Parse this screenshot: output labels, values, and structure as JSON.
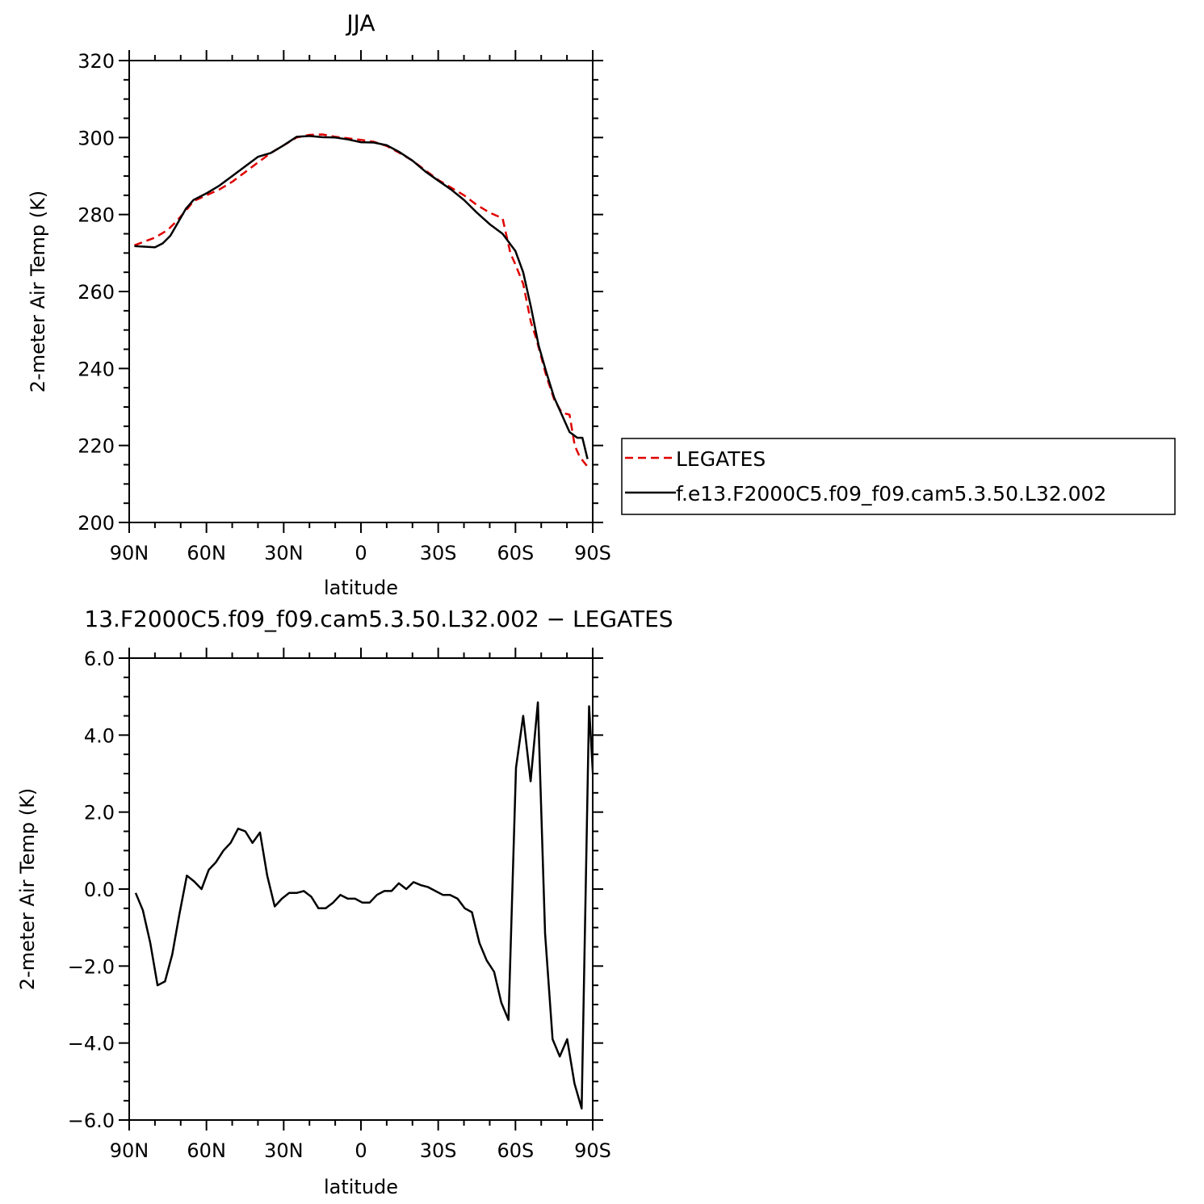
{
  "chart_data": [
    {
      "type": "line",
      "title": "JJA",
      "xlabel": "latitude",
      "ylabel": "2-meter Air Temp (K)",
      "xlim": [
        90,
        -90
      ],
      "ylim": [
        200,
        320
      ],
      "yticks": [
        200,
        220,
        240,
        260,
        280,
        300,
        320
      ],
      "yticklabels": [
        "200",
        "220",
        "240",
        "260",
        "280",
        "300",
        "320"
      ],
      "xticks": [
        90,
        60,
        30,
        0,
        -30,
        -60,
        -90
      ],
      "xticklabels": [
        "90N",
        "60N",
        "30N",
        "0",
        "30S",
        "60S",
        "90S"
      ],
      "grid": false,
      "legend": {
        "placement": "right",
        "entries": [
          "LEGATES",
          "f.e13.F2000C5.f09_f09.cam5.3.50.L32.002"
        ]
      },
      "series": [
        {
          "name": "LEGATES",
          "color": "#e00000",
          "style": "dashed",
          "points": [
            [
              88,
              272
            ],
            [
              80,
              274
            ],
            [
              75,
              276
            ],
            [
              72,
              278
            ],
            [
              68,
              281
            ],
            [
              65,
              283.5
            ],
            [
              60,
              285
            ],
            [
              55,
              286.5
            ],
            [
              50,
              288.5
            ],
            [
              45,
              291
            ],
            [
              40,
              293.5
            ],
            [
              35,
              296
            ],
            [
              30,
              298
            ],
            [
              25,
              300
            ],
            [
              20,
              300.7
            ],
            [
              15,
              300.8
            ],
            [
              10,
              300.2
            ],
            [
              5,
              299.8
            ],
            [
              0,
              299.4
            ],
            [
              -5,
              298.9
            ],
            [
              -10,
              297.8
            ],
            [
              -15,
              296
            ],
            [
              -20,
              294
            ],
            [
              -25,
              291.5
            ],
            [
              -30,
              289
            ],
            [
              -35,
              287
            ],
            [
              -40,
              285
            ],
            [
              -45,
              282.5
            ],
            [
              -50,
              280.5
            ],
            [
              -55,
              279
            ],
            [
              -58,
              270
            ],
            [
              -60,
              267
            ],
            [
              -63,
              262
            ],
            [
              -66,
              252
            ],
            [
              -68,
              248
            ],
            [
              -70,
              243
            ],
            [
              -72,
              238
            ],
            [
              -75,
              232
            ],
            [
              -78,
              228.5
            ],
            [
              -81,
              228
            ],
            [
              -83,
              220
            ],
            [
              -85,
              217
            ],
            [
              -88,
              214.5
            ]
          ]
        },
        {
          "name": "f.e13.F2000C5.f09_f09.cam5.3.50.L32.002",
          "color": "#000000",
          "style": "solid",
          "points": [
            [
              88,
              271.8
            ],
            [
              80,
              271.5
            ],
            [
              77,
              272.5
            ],
            [
              74,
              274.5
            ],
            [
              71,
              278
            ],
            [
              68,
              281.5
            ],
            [
              65,
              283.8
            ],
            [
              60,
              285.5
            ],
            [
              55,
              287.5
            ],
            [
              50,
              290
            ],
            [
              45,
              292.5
            ],
            [
              40,
              295
            ],
            [
              35,
              296
            ],
            [
              30,
              298
            ],
            [
              25,
              300.2
            ],
            [
              20,
              300.4
            ],
            [
              15,
              300.1
            ],
            [
              10,
              300
            ],
            [
              5,
              299.5
            ],
            [
              0,
              298.8
            ],
            [
              -5,
              298.7
            ],
            [
              -10,
              298
            ],
            [
              -15,
              296.2
            ],
            [
              -20,
              294
            ],
            [
              -25,
              291.2
            ],
            [
              -30,
              288.8
            ],
            [
              -35,
              286.5
            ],
            [
              -40,
              283.8
            ],
            [
              -45,
              280.5
            ],
            [
              -50,
              277.5
            ],
            [
              -55,
              275
            ],
            [
              -60,
              270.5
            ],
            [
              -63,
              265
            ],
            [
              -66,
              256
            ],
            [
              -69,
              246
            ],
            [
              -72,
              239
            ],
            [
              -75,
              232.5
            ],
            [
              -78,
              228
            ],
            [
              -81,
              223.5
            ],
            [
              -84,
              222
            ],
            [
              -86,
              222
            ],
            [
              -88,
              216.5
            ]
          ]
        }
      ]
    },
    {
      "type": "line",
      "title": "13.F2000C5.f09_f09.cam5.3.50.L32.002 − LEGATES",
      "xlabel": "latitude",
      "ylabel": "2-meter Air Temp (K)",
      "xlim": [
        90,
        -90
      ],
      "ylim": [
        -6,
        6
      ],
      "yticks": [
        -6,
        -4,
        -2,
        0,
        2,
        4,
        6
      ],
      "yticklabels": [
        "−6.0",
        "−4.0",
        "−2.0",
        "0.0",
        "2.0",
        "4.0",
        "6.0"
      ],
      "xticks": [
        90,
        60,
        30,
        0,
        -30,
        -60,
        -90
      ],
      "xticklabels": [
        "90N",
        "60N",
        "30N",
        "0",
        "30S",
        "60S",
        "90S"
      ],
      "grid": false,
      "series": [
        {
          "color": "#000000",
          "style": "solid",
          "points": [
            [
              87.5,
              -0.1
            ],
            [
              84.7,
              -0.55
            ],
            [
              81.8,
              -1.4
            ],
            [
              79,
              -2.5
            ],
            [
              76.1,
              -2.4
            ],
            [
              73.3,
              -1.7
            ],
            [
              70.5,
              -0.65
            ],
            [
              67.6,
              0.35
            ],
            [
              64.8,
              0.2
            ],
            [
              61.9,
              0
            ],
            [
              59.1,
              0.5
            ],
            [
              56.3,
              0.7
            ],
            [
              53.4,
              1.0
            ],
            [
              50.6,
              1.2
            ],
            [
              47.7,
              1.57
            ],
            [
              44.9,
              1.5
            ],
            [
              42.1,
              1.2
            ],
            [
              39.2,
              1.47
            ],
            [
              36.4,
              0.35
            ],
            [
              33.5,
              -0.45
            ],
            [
              30.7,
              -0.25
            ],
            [
              27.9,
              -0.1
            ],
            [
              25,
              -0.1
            ],
            [
              22.2,
              -0.05
            ],
            [
              19.3,
              -0.2
            ],
            [
              16.5,
              -0.5
            ],
            [
              13.7,
              -0.5
            ],
            [
              10.8,
              -0.35
            ],
            [
              8,
              -0.15
            ],
            [
              5.1,
              -0.25
            ],
            [
              2.3,
              -0.25
            ],
            [
              -0.5,
              -0.35
            ],
            [
              -3.4,
              -0.35
            ],
            [
              -6.2,
              -0.15
            ],
            [
              -9.1,
              -0.05
            ],
            [
              -11.9,
              -0.05
            ],
            [
              -14.7,
              0.15
            ],
            [
              -17.6,
              0
            ],
            [
              -20.4,
              0.18
            ],
            [
              -23.3,
              0.1
            ],
            [
              -26.1,
              0.05
            ],
            [
              -28.9,
              -0.05
            ],
            [
              -31.8,
              -0.15
            ],
            [
              -34.6,
              -0.15
            ],
            [
              -37.5,
              -0.25
            ],
            [
              -40.3,
              -0.5
            ],
            [
              -43.1,
              -0.6
            ],
            [
              -46,
              -1.4
            ],
            [
              -48.8,
              -1.85
            ],
            [
              -51.7,
              -2.15
            ],
            [
              -54.5,
              -2.95
            ],
            [
              -57.3,
              -3.4
            ],
            [
              -60.2,
              3.15
            ],
            [
              -63,
              4.5
            ],
            [
              -65.9,
              2.8
            ],
            [
              -68.7,
              4.85
            ],
            [
              -71.5,
              -1.15
            ],
            [
              -74.4,
              -3.9
            ],
            [
              -77.2,
              -4.35
            ],
            [
              -80.1,
              -3.9
            ],
            [
              -82.9,
              -5.05
            ],
            [
              -85.7,
              -5.7
            ],
            [
              -88.6,
              4.75
            ],
            [
              -91.4,
              1.4
            ]
          ]
        }
      ]
    }
  ]
}
